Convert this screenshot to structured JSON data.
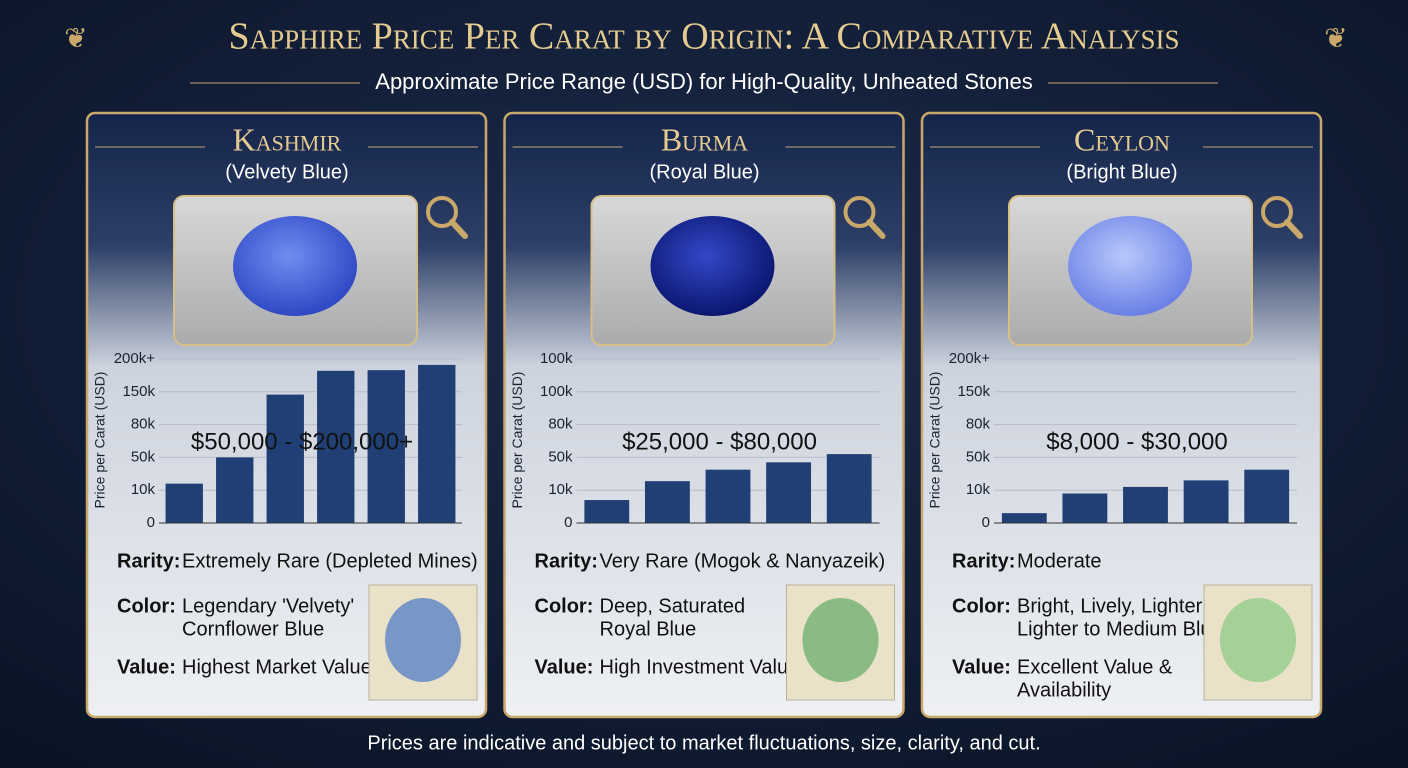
{
  "title": "Sapphire Price Per Carat by Origin: A Comparative Analysis",
  "subtitle": "Approximate Price Range (USD) for High-Quality, Unheated Stones",
  "footer": "Prices are indicative and subject to market fluctuations, size, clarity, and cut.",
  "chart_data": [
    {
      "type": "bar",
      "title": "Kashmir",
      "subtitle": "(Velvety Blue)",
      "annotation": "$50,000 - $200,000+",
      "y_label": "Price per Carat (USD)",
      "color": "#1f3f75",
      "grid": true,
      "categories": [
        null,
        null,
        null,
        null,
        null,
        null
      ],
      "values": [
        18000,
        50000,
        144000,
        182000,
        183000,
        191000
      ],
      "ylim": [
        0,
        200000
      ],
      "yticks": [
        0,
        {
          "value": 10000,
          "label": "10k"
        },
        {
          "value": 50000,
          "label": "50k"
        },
        {
          "value": 80000,
          "label": "80k"
        },
        {
          "value": 150000,
          "label": "150k"
        },
        {
          "value": 200000,
          "label": "200k+"
        }
      ],
      "details": [
        {
          "label": "Rarity:",
          "text": [
            "Extremely Rare (Depleted Mines)"
          ]
        },
        {
          "label": "Color:",
          "text": [
            "Legendary 'Velvety'",
            "Cornflower Blue"
          ]
        },
        {
          "label": "Value:",
          "text": [
            "Highest Market Value"
          ]
        }
      ]
    },
    {
      "type": "bar",
      "title": "Burma",
      "subtitle": "(Royal Blue)",
      "annotation": "$25,000 - $80,000",
      "y_label": "Price per Carat (USD)",
      "color": "#1f3f75",
      "grid": true,
      "categories": [
        null,
        null,
        null,
        null,
        null
      ],
      "values": [
        7000,
        21000,
        35000,
        44000,
        53000
      ],
      "ylim": [
        0,
        100000
      ],
      "yticks": [
        0,
        {
          "value": 10000,
          "label": "10k"
        },
        {
          "value": 50000,
          "label": "50k"
        },
        {
          "value": 80000,
          "label": "80k"
        },
        {
          "value": 100000,
          "label": "100k"
        },
        {
          "value": 100000,
          "label": "100k"
        }
      ],
      "details": [
        {
          "label": "Rarity:",
          "text": [
            "Very Rare (Mogok & Nanyazeik)"
          ]
        },
        {
          "label": "Color:",
          "text": [
            "Deep, Saturated",
            "Royal Blue"
          ]
        },
        {
          "label": "Value:",
          "text": [
            "High Investment Value"
          ]
        }
      ]
    },
    {
      "type": "bar",
      "title": "Ceylon",
      "subtitle": "(Bright Blue)",
      "annotation": "$8,000 - $30,000",
      "y_label": "Price per Carat (USD)",
      "color": "#1f3f75",
      "grid": true,
      "categories": [
        null,
        null,
        null,
        null,
        null
      ],
      "values": [
        3000,
        9000,
        14000,
        22000,
        35000
      ],
      "ylim": [
        0,
        200000
      ],
      "yticks": [
        0,
        {
          "value": 10000,
          "label": "10k"
        },
        {
          "value": 50000,
          "label": "50k"
        },
        {
          "value": 80000,
          "label": "80k"
        },
        {
          "value": 150000,
          "label": "150k"
        },
        {
          "value": 200000,
          "label": "200k+"
        }
      ],
      "details": [
        {
          "label": "Rarity:",
          "text": [
            "Moderate"
          ]
        },
        {
          "label": "Color:",
          "text": [
            "Bright, Lively, Lighter",
            "Lighter to Medium Blue"
          ]
        },
        {
          "label": "Value:",
          "text": [
            "Excellent Value &",
            "Availability"
          ]
        }
      ]
    }
  ]
}
